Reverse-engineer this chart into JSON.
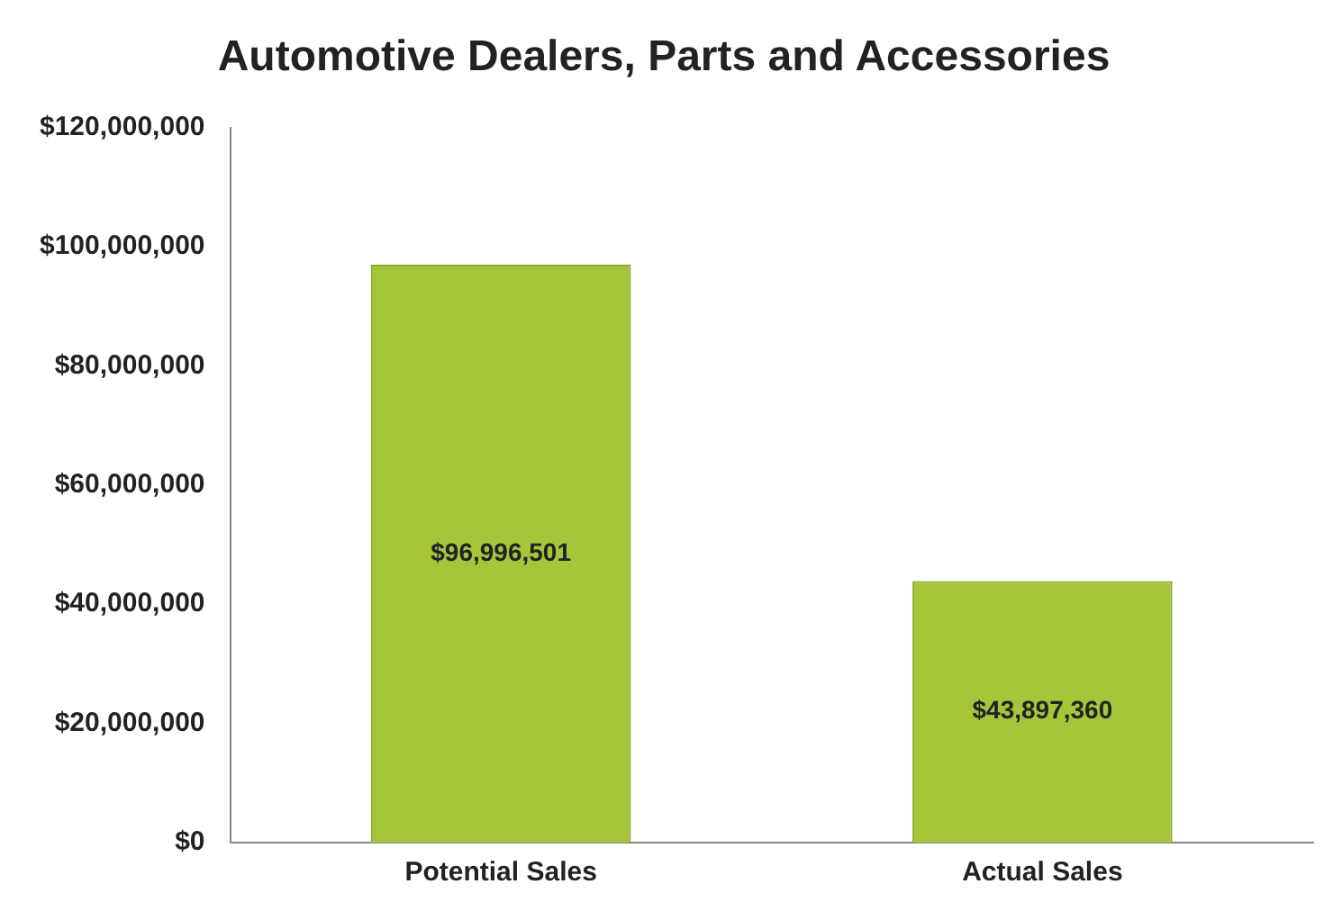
{
  "chart_data": {
    "type": "bar",
    "title": "Automotive Dealers, Parts and Accessories",
    "categories": [
      "Potential Sales",
      "Actual Sales"
    ],
    "values": [
      96996501,
      43897360
    ],
    "value_labels": [
      "$96,996,501",
      "$43,897,360"
    ],
    "color": "#a6c63a",
    "ylim": [
      0,
      120000000
    ],
    "yticks": [
      {
        "value": 0,
        "label": "$0"
      },
      {
        "value": 20000000,
        "label": "$20,000,000"
      },
      {
        "value": 40000000,
        "label": "$40,000,000"
      },
      {
        "value": 60000000,
        "label": "$60,000,000"
      },
      {
        "value": 80000000,
        "label": "$80,000,000"
      },
      {
        "value": 100000000,
        "label": "$100,000,000"
      },
      {
        "value": 120000000,
        "label": "$120,000,000"
      }
    ],
    "grid": false,
    "legend": false
  }
}
